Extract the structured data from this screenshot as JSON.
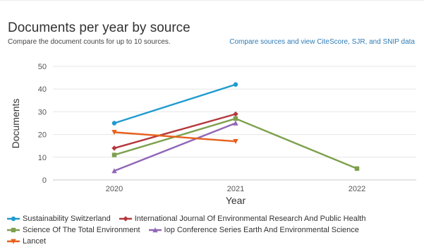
{
  "header": {
    "title": "Documents per year by source",
    "subtitle": "Compare the document counts for up to 10 sources.",
    "compare_link": "Compare sources and view CiteScore, SJR, and SNIP data"
  },
  "chart_data": {
    "type": "line",
    "title": "Documents per year by source",
    "subtitle": "Compare the document counts for up to 10 sources.",
    "xlabel": "Year",
    "ylabel": "Documents",
    "categories": [
      "2020",
      "2021",
      "2022"
    ],
    "ylim": [
      0,
      50
    ],
    "yticks": [
      0,
      10,
      20,
      30,
      40,
      50
    ],
    "grid": true,
    "legend_position": "bottom",
    "series": [
      {
        "name": "Sustainability Switzerland",
        "color": "#1f9bcf",
        "marker": "circle",
        "values": [
          25,
          42,
          null
        ]
      },
      {
        "name": "International Journal Of Environmental Research And Public Health",
        "color": "#b5373d",
        "marker": "diamond",
        "values": [
          14,
          29,
          null
        ]
      },
      {
        "name": "Science Of The Total Environment",
        "color": "#7ea04d",
        "marker": "square",
        "values": [
          11,
          27,
          5
        ]
      },
      {
        "name": "Iop Conference Series Earth And Environmental Science",
        "color": "#9166b8",
        "marker": "triangle",
        "values": [
          4,
          25,
          null
        ]
      },
      {
        "name": "Lancet",
        "color": "#e8601c",
        "marker": "triangle-down",
        "values": [
          21,
          17,
          null
        ]
      }
    ]
  }
}
